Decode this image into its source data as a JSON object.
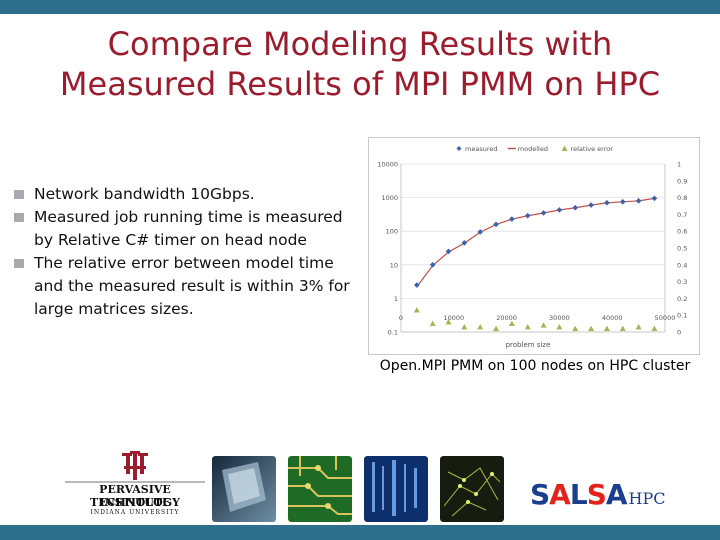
{
  "slide": {
    "title_line1": "Compare Modeling Results with",
    "title_line2": "Measured Results of MPI PMM on HPC",
    "bullets": [
      "Network bandwidth 10Gbps.",
      "Measured job running time is measured by Relative  C# timer on head node",
      "The relative error between model time and the measured result is within 3% for large matrices sizes."
    ],
    "caption": "Open.MPI PMM on 100 nodes on HPC cluster",
    "logo_pti_line1": "PERVASIVE TECHNOLOGY",
    "logo_pti_line2": "INSTITUTE",
    "logo_pti_line3": "INDIANA UNIVERSITY",
    "logo_salsa": "SALSA",
    "logo_hpc": "HPC",
    "colors": {
      "bars": "#2e6f8e",
      "title": "#9b1c2c",
      "bullet_square": "#a9aab0",
      "measured": "#3a63b0",
      "modelled": "#c0504d",
      "relative_error": "#9bbb59"
    }
  },
  "chart_data": {
    "type": "scatter",
    "xlabel": "problem size",
    "ylabel": "",
    "title": "",
    "legend_position": "top",
    "x_ticks": [
      "0",
      "10000",
      "20000",
      "30000",
      "40000",
      "50000"
    ],
    "y_left_ticks": [
      "0.1",
      "1",
      "10",
      "100",
      "1000",
      "10000"
    ],
    "y_right_ticks": [
      "0",
      "0.1",
      "0.2",
      "0.3",
      "0.4",
      "0.5",
      "0.6",
      "0.7",
      "0.8",
      "0.9",
      "1"
    ],
    "xlim": [
      0,
      50000
    ],
    "ylim_left": [
      0.1,
      10000
    ],
    "ylim_left_scale": "log",
    "ylim_right": [
      0,
      1
    ],
    "grid": true,
    "series": [
      {
        "name": "measured",
        "axis": "left",
        "marker": "diamond",
        "x": [
          3000,
          6000,
          9000,
          12000,
          15000,
          18000,
          21000,
          24000,
          27000,
          30000,
          33000,
          36000,
          39000,
          42000,
          45000,
          48000
        ],
        "y": [
          2.5,
          10,
          25,
          45,
          95,
          160,
          230,
          290,
          350,
          430,
          500,
          600,
          700,
          750,
          800,
          950
        ]
      },
      {
        "name": "modelled",
        "axis": "left",
        "marker": "line",
        "x": [
          3000,
          6000,
          9000,
          12000,
          15000,
          18000,
          21000,
          24000,
          27000,
          30000,
          33000,
          36000,
          39000,
          42000,
          45000,
          48000
        ],
        "y": [
          2.2,
          9.5,
          24,
          44,
          93,
          158,
          228,
          288,
          348,
          428,
          498,
          598,
          698,
          748,
          798,
          948
        ]
      },
      {
        "name": "relative error",
        "axis": "right",
        "marker": "triangle",
        "x": [
          3000,
          6000,
          9000,
          12000,
          15000,
          18000,
          21000,
          24000,
          27000,
          30000,
          33000,
          36000,
          39000,
          42000,
          45000,
          48000
        ],
        "y": [
          0.13,
          0.05,
          0.06,
          0.03,
          0.03,
          0.02,
          0.05,
          0.03,
          0.04,
          0.03,
          0.02,
          0.02,
          0.02,
          0.02,
          0.03,
          0.02
        ]
      }
    ]
  }
}
